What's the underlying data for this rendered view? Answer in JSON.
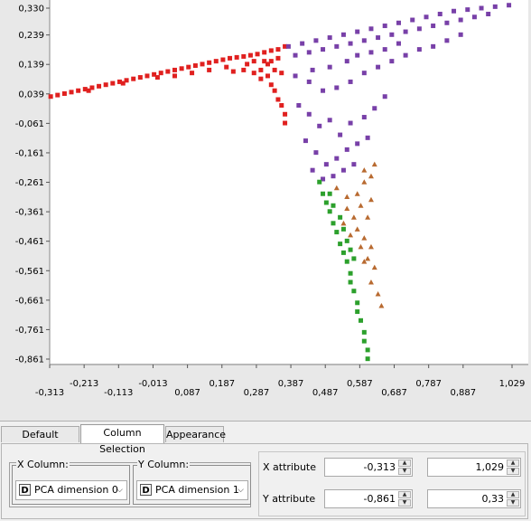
{
  "chart_data": {
    "type": "scatter",
    "xlim": [
      -0.313,
      1.029
    ],
    "ylim": [
      -0.861,
      0.33
    ],
    "x_tick_labels": [
      {
        "value": -0.313,
        "label": "-0,313"
      },
      {
        "value": -0.213,
        "label": "-0,213"
      },
      {
        "value": -0.113,
        "label": "-0,113"
      },
      {
        "value": -0.013,
        "label": "-0,013"
      },
      {
        "value": 0.087,
        "label": "0,087"
      },
      {
        "value": 0.187,
        "label": "0,187"
      },
      {
        "value": 0.287,
        "label": "0,287"
      },
      {
        "value": 0.387,
        "label": "0,387"
      },
      {
        "value": 0.487,
        "label": "0,487"
      },
      {
        "value": 0.587,
        "label": "0,587"
      },
      {
        "value": 0.687,
        "label": "0,687"
      },
      {
        "value": 0.787,
        "label": "0,787"
      },
      {
        "value": 0.887,
        "label": "0,887"
      },
      {
        "value": 1.029,
        "label": "1,029"
      }
    ],
    "y_tick_labels": [
      {
        "value": 0.33,
        "label": "0,330"
      },
      {
        "value": 0.239,
        "label": "0,239"
      },
      {
        "value": 0.139,
        "label": "0,139"
      },
      {
        "value": 0.039,
        "label": "0,039"
      },
      {
        "value": -0.061,
        "label": "-0,061"
      },
      {
        "value": -0.161,
        "label": "-0,161"
      },
      {
        "value": -0.261,
        "label": "-0,261"
      },
      {
        "value": -0.361,
        "label": "-0,361"
      },
      {
        "value": -0.461,
        "label": "-0,461"
      },
      {
        "value": -0.561,
        "label": "-0,561"
      },
      {
        "value": -0.661,
        "label": "-0,661"
      },
      {
        "value": -0.761,
        "label": "-0,761"
      },
      {
        "value": -0.861,
        "label": "-0,861"
      }
    ],
    "series": [
      {
        "color": "#e0201f",
        "marker": "square",
        "points": [
          [
            -0.31,
            0.03
          ],
          [
            -0.29,
            0.035
          ],
          [
            -0.27,
            0.04
          ],
          [
            -0.25,
            0.045
          ],
          [
            -0.23,
            0.05
          ],
          [
            -0.21,
            0.055
          ],
          [
            -0.19,
            0.06
          ],
          [
            -0.17,
            0.065
          ],
          [
            -0.15,
            0.07
          ],
          [
            -0.13,
            0.075
          ],
          [
            -0.11,
            0.08
          ],
          [
            -0.09,
            0.085
          ],
          [
            -0.07,
            0.09
          ],
          [
            -0.05,
            0.095
          ],
          [
            -0.03,
            0.1
          ],
          [
            -0.01,
            0.105
          ],
          [
            0.01,
            0.11
          ],
          [
            0.03,
            0.115
          ],
          [
            0.05,
            0.12
          ],
          [
            0.07,
            0.125
          ],
          [
            0.09,
            0.13
          ],
          [
            0.11,
            0.135
          ],
          [
            0.13,
            0.14
          ],
          [
            0.15,
            0.145
          ],
          [
            0.17,
            0.15
          ],
          [
            0.19,
            0.155
          ],
          [
            0.21,
            0.16
          ],
          [
            0.23,
            0.163
          ],
          [
            0.25,
            0.166
          ],
          [
            0.27,
            0.17
          ],
          [
            0.29,
            0.174
          ],
          [
            0.31,
            0.18
          ],
          [
            0.33,
            0.186
          ],
          [
            0.35,
            0.19
          ],
          [
            0.37,
            0.2
          ],
          [
            -0.2,
            0.05
          ],
          [
            -0.1,
            0.075
          ],
          [
            0.0,
            0.095
          ],
          [
            0.05,
            0.1
          ],
          [
            0.1,
            0.11
          ],
          [
            0.15,
            0.12
          ],
          [
            0.2,
            0.13
          ],
          [
            0.22,
            0.115
          ],
          [
            0.25,
            0.12
          ],
          [
            0.28,
            0.11
          ],
          [
            0.3,
            0.12
          ],
          [
            0.3,
            0.09
          ],
          [
            0.32,
            0.1
          ],
          [
            0.33,
            0.07
          ],
          [
            0.34,
            0.05
          ],
          [
            0.35,
            0.02
          ],
          [
            0.36,
            0.0
          ],
          [
            0.37,
            -0.03
          ],
          [
            0.37,
            -0.06
          ],
          [
            0.32,
            0.14
          ],
          [
            0.34,
            0.12
          ],
          [
            0.36,
            0.11
          ],
          [
            0.26,
            0.14
          ],
          [
            0.28,
            0.15
          ],
          [
            0.31,
            0.15
          ],
          [
            0.35,
            0.16
          ],
          [
            0.33,
            0.15
          ]
        ]
      },
      {
        "color": "#7840a8",
        "marker": "square",
        "points": [
          [
            0.38,
            0.2
          ],
          [
            0.42,
            0.21
          ],
          [
            0.46,
            0.22
          ],
          [
            0.5,
            0.23
          ],
          [
            0.54,
            0.24
          ],
          [
            0.58,
            0.25
          ],
          [
            0.62,
            0.26
          ],
          [
            0.66,
            0.27
          ],
          [
            0.7,
            0.28
          ],
          [
            0.74,
            0.29
          ],
          [
            0.78,
            0.3
          ],
          [
            0.82,
            0.31
          ],
          [
            0.86,
            0.32
          ],
          [
            0.9,
            0.325
          ],
          [
            0.94,
            0.33
          ],
          [
            0.98,
            0.335
          ],
          [
            1.02,
            0.34
          ],
          [
            0.4,
            0.17
          ],
          [
            0.44,
            0.18
          ],
          [
            0.48,
            0.19
          ],
          [
            0.52,
            0.2
          ],
          [
            0.56,
            0.21
          ],
          [
            0.6,
            0.22
          ],
          [
            0.64,
            0.23
          ],
          [
            0.68,
            0.24
          ],
          [
            0.72,
            0.25
          ],
          [
            0.76,
            0.26
          ],
          [
            0.8,
            0.27
          ],
          [
            0.84,
            0.28
          ],
          [
            0.88,
            0.29
          ],
          [
            0.92,
            0.3
          ],
          [
            0.96,
            0.31
          ],
          [
            0.4,
            0.1
          ],
          [
            0.44,
            0.08
          ],
          [
            0.48,
            0.05
          ],
          [
            0.52,
            0.06
          ],
          [
            0.56,
            0.08
          ],
          [
            0.6,
            0.11
          ],
          [
            0.64,
            0.13
          ],
          [
            0.68,
            0.15
          ],
          [
            0.72,
            0.17
          ],
          [
            0.76,
            0.19
          ],
          [
            0.8,
            0.2
          ],
          [
            0.84,
            0.22
          ],
          [
            0.88,
            0.24
          ],
          [
            0.41,
            0.0
          ],
          [
            0.44,
            -0.03
          ],
          [
            0.47,
            -0.07
          ],
          [
            0.5,
            -0.05
          ],
          [
            0.53,
            -0.1
          ],
          [
            0.56,
            -0.06
          ],
          [
            0.6,
            -0.04
          ],
          [
            0.63,
            -0.01
          ],
          [
            0.66,
            0.03
          ],
          [
            0.43,
            -0.12
          ],
          [
            0.46,
            -0.16
          ],
          [
            0.49,
            -0.2
          ],
          [
            0.52,
            -0.18
          ],
          [
            0.55,
            -0.15
          ],
          [
            0.58,
            -0.13
          ],
          [
            0.61,
            -0.11
          ],
          [
            0.45,
            -0.22
          ],
          [
            0.48,
            -0.25
          ],
          [
            0.51,
            -0.24
          ],
          [
            0.54,
            -0.22
          ],
          [
            0.57,
            -0.2
          ],
          [
            0.45,
            0.12
          ],
          [
            0.5,
            0.13
          ],
          [
            0.55,
            0.15
          ],
          [
            0.58,
            0.17
          ],
          [
            0.62,
            0.18
          ],
          [
            0.66,
            0.19
          ],
          [
            0.7,
            0.21
          ]
        ]
      },
      {
        "color": "#2ca02c",
        "marker": "square",
        "points": [
          [
            0.47,
            -0.26
          ],
          [
            0.48,
            -0.3
          ],
          [
            0.49,
            -0.33
          ],
          [
            0.5,
            -0.36
          ],
          [
            0.51,
            -0.4
          ],
          [
            0.52,
            -0.43
          ],
          [
            0.53,
            -0.47
          ],
          [
            0.54,
            -0.5
          ],
          [
            0.55,
            -0.53
          ],
          [
            0.56,
            -0.57
          ],
          [
            0.56,
            -0.6
          ],
          [
            0.57,
            -0.63
          ],
          [
            0.58,
            -0.67
          ],
          [
            0.58,
            -0.7
          ],
          [
            0.59,
            -0.73
          ],
          [
            0.6,
            -0.77
          ],
          [
            0.6,
            -0.8
          ],
          [
            0.61,
            -0.83
          ],
          [
            0.61,
            -0.86
          ],
          [
            0.5,
            -0.3
          ],
          [
            0.51,
            -0.34
          ],
          [
            0.53,
            -0.38
          ],
          [
            0.54,
            -0.42
          ],
          [
            0.55,
            -0.46
          ],
          [
            0.56,
            -0.49
          ],
          [
            0.57,
            -0.52
          ]
        ]
      },
      {
        "color": "#b86a30",
        "marker": "triangle",
        "points": [
          [
            0.52,
            -0.28
          ],
          [
            0.55,
            -0.31
          ],
          [
            0.58,
            -0.3
          ],
          [
            0.6,
            -0.26
          ],
          [
            0.62,
            -0.24
          ],
          [
            0.6,
            -0.22
          ],
          [
            0.63,
            -0.2
          ],
          [
            0.55,
            -0.35
          ],
          [
            0.57,
            -0.38
          ],
          [
            0.59,
            -0.34
          ],
          [
            0.62,
            -0.32
          ],
          [
            0.61,
            -0.38
          ],
          [
            0.58,
            -0.42
          ],
          [
            0.6,
            -0.45
          ],
          [
            0.62,
            -0.48
          ],
          [
            0.61,
            -0.52
          ],
          [
            0.63,
            -0.55
          ],
          [
            0.62,
            -0.6
          ],
          [
            0.64,
            -0.64
          ],
          [
            0.65,
            -0.68
          ],
          [
            0.54,
            -0.4
          ],
          [
            0.56,
            -0.44
          ],
          [
            0.59,
            -0.48
          ],
          [
            0.6,
            -0.53
          ]
        ]
      }
    ]
  },
  "tabs": [
    {
      "label": "Default Settings",
      "active": false
    },
    {
      "label": "Column Selection",
      "active": true
    },
    {
      "label": "Appearance",
      "active": false
    }
  ],
  "settings": {
    "x_column": {
      "title": "X Column:",
      "icon": "D",
      "value": "PCA dimension 0"
    },
    "y_column": {
      "title": "Y Column:",
      "icon": "D",
      "value": "PCA dimension 1"
    },
    "x_attribute": {
      "label": "X attribute",
      "min": "-0,313",
      "max": "1,029"
    },
    "y_attribute": {
      "label": "Y attribute",
      "min": "-0,861",
      "max": "0,33"
    }
  }
}
